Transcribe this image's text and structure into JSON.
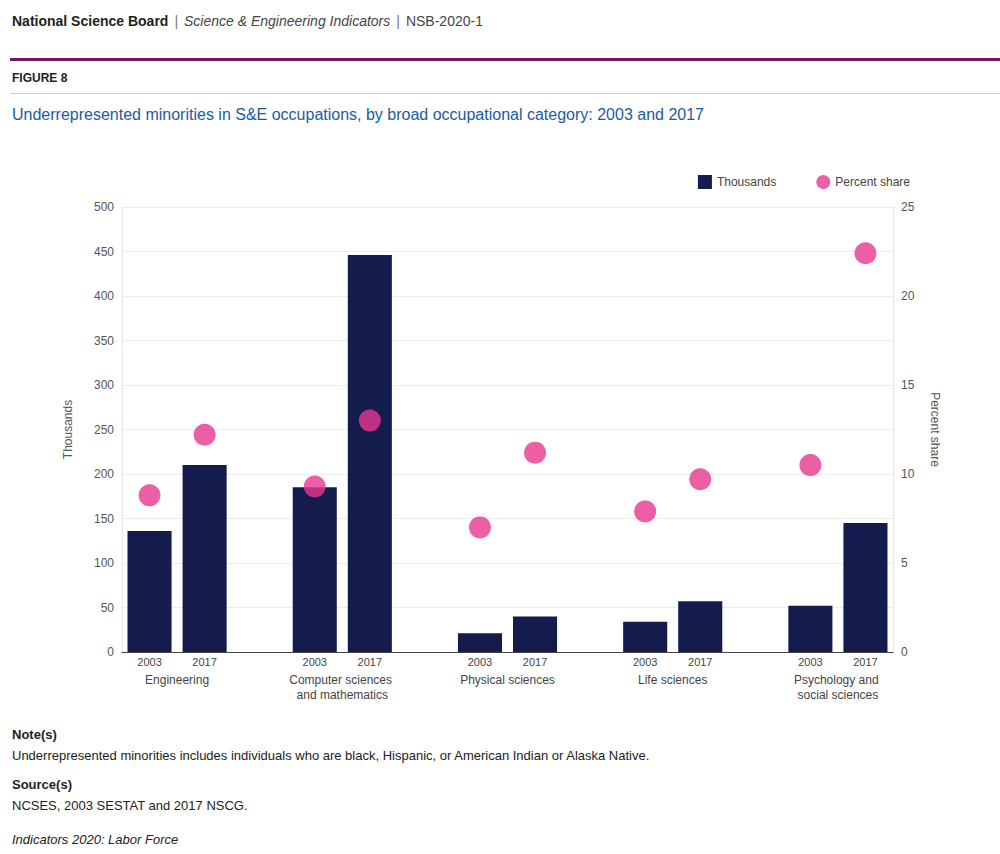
{
  "header": {
    "organization": "National Science Board",
    "separator": "|",
    "report": "Science & Engineering Indicators",
    "number": "NSB-2020-1"
  },
  "figure_label": "FIGURE 8",
  "notes_heading": "Note(s)",
  "notes": "Underrepresented minorities includes individuals who are black, Hispanic, or American Indian or Alaska Native.",
  "sources_heading": "Source(s)",
  "sources": "NCSES, 2003 SESTAT and 2017 NSCG.",
  "footer": "Indicators 2020: Labor Force",
  "chart_data": {
    "type": "bar",
    "title": "Underrepresented minorities in S&E occupations, by broad occupational category: 2003 and 2017",
    "categories": [
      "2003",
      "2017",
      null,
      "2003",
      "2017",
      null,
      "2003",
      "2017",
      null,
      "2003",
      "2017",
      null,
      "2003",
      "2017"
    ],
    "groups": [
      "Engineering",
      "Computer sciences and mathematics",
      "Physical sciences",
      "Life sciences",
      "Psychology and social sciences"
    ],
    "ylabel": "Thousands",
    "y2label": "Percent share",
    "ylim": [
      0,
      500
    ],
    "yticks": [
      0,
      50,
      100,
      150,
      200,
      250,
      300,
      350,
      400,
      450,
      500
    ],
    "y2lim": [
      0,
      25
    ],
    "y2ticks": [
      0,
      5,
      10,
      15,
      20,
      25
    ],
    "grid": true,
    "legend": "upper right",
    "series": [
      {
        "name": "Thousands",
        "type": "bar",
        "color": "#141b4d",
        "values": [
          136,
          210,
          null,
          185,
          446,
          null,
          21,
          40,
          null,
          34,
          57,
          null,
          52,
          145
        ]
      },
      {
        "name": "Percent share",
        "type": "scatter",
        "axis": "y2",
        "marker": "circle",
        "color": "#e8378f",
        "values": [
          8.8,
          12.2,
          null,
          9.3,
          13.0,
          null,
          7.0,
          11.2,
          null,
          7.9,
          9.7,
          null,
          10.5,
          22.4
        ]
      }
    ]
  }
}
